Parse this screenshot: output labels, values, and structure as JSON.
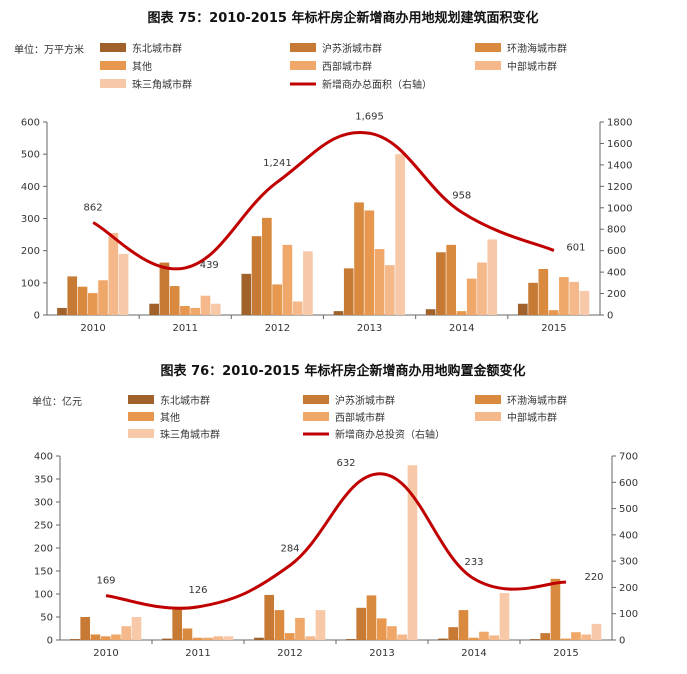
{
  "colors": {
    "series": [
      "#a0612a",
      "#c77a34",
      "#d98a3f",
      "#e8974e",
      "#f0a86a",
      "#f4b88a",
      "#f7c9a8"
    ],
    "line": "#c00000",
    "axis": "#666666"
  },
  "chart_data": [
    {
      "type": "bar",
      "title": "图表 75：2010-2015 年标杆房企新增商办用地规划建筑面积变化",
      "unit_label": "单位：万平方米",
      "categories": [
        "2010",
        "2011",
        "2012",
        "2013",
        "2014",
        "2015"
      ],
      "ylim": [
        0,
        600
      ],
      "yticks": [
        "0",
        "100",
        "200",
        "300",
        "400",
        "500",
        "600"
      ],
      "y2lim": [
        0,
        1800
      ],
      "y2ticks": [
        "0",
        "200",
        "400",
        "600",
        "800",
        "1000",
        "1200",
        "1400",
        "1600",
        "1800"
      ],
      "series": [
        {
          "name": "东北城市群",
          "values": [
            22,
            35,
            128,
            12,
            18,
            35
          ]
        },
        {
          "name": "沪苏浙城市群",
          "values": [
            120,
            163,
            245,
            145,
            195,
            100
          ]
        },
        {
          "name": "环渤海城市群",
          "values": [
            88,
            90,
            302,
            350,
            218,
            143
          ]
        },
        {
          "name": "其他",
          "values": [
            68,
            28,
            95,
            325,
            12,
            15
          ]
        },
        {
          "name": "西部城市群",
          "values": [
            108,
            22,
            218,
            205,
            113,
            118
          ]
        },
        {
          "name": "中部城市群",
          "values": [
            255,
            60,
            42,
            155,
            163,
            103
          ]
        },
        {
          "name": "珠三角城市群",
          "values": [
            190,
            35,
            198,
            500,
            235,
            75
          ]
        }
      ],
      "line": {
        "name": "新增商办总面积（右轴）",
        "values": [
          862,
          439,
          1241,
          1695,
          958,
          601
        ],
        "labels": [
          "862",
          "439",
          "1,241",
          "1,695",
          "958",
          "601"
        ]
      }
    },
    {
      "type": "bar",
      "title": "图表 76：2010-2015 年标杆房企新增商办用地购置金额变化",
      "unit_label": "单位：亿元",
      "categories": [
        "2010",
        "2011",
        "2012",
        "2013",
        "2014",
        "2015"
      ],
      "ylim": [
        0,
        400
      ],
      "yticks": [
        "0",
        "50",
        "100",
        "150",
        "200",
        "250",
        "300",
        "350",
        "400"
      ],
      "y2lim": [
        0,
        700
      ],
      "y2ticks": [
        "0",
        "100",
        "200",
        "300",
        "400",
        "500",
        "600",
        "700"
      ],
      "series": [
        {
          "name": "东北城市群",
          "values": [
            2,
            3,
            5,
            2,
            3,
            2
          ]
        },
        {
          "name": "沪苏浙城市群",
          "values": [
            50,
            72,
            98,
            70,
            28,
            15
          ]
        },
        {
          "name": "环渤海城市群",
          "values": [
            12,
            25,
            65,
            97,
            65,
            133
          ]
        },
        {
          "name": "其他",
          "values": [
            8,
            5,
            15,
            47,
            5,
            3
          ]
        },
        {
          "name": "西部城市群",
          "values": [
            12,
            5,
            48,
            30,
            18,
            17
          ]
        },
        {
          "name": "中部城市群",
          "values": [
            30,
            8,
            8,
            12,
            10,
            12
          ]
        },
        {
          "name": "珠三角城市群",
          "values": [
            50,
            8,
            65,
            380,
            102,
            35
          ]
        }
      ],
      "line": {
        "name": "新增商办总投资（右轴）",
        "values": [
          169,
          126,
          284,
          632,
          233,
          220
        ],
        "labels": [
          "169",
          "126",
          "284",
          "632",
          "233",
          "220"
        ]
      }
    }
  ]
}
